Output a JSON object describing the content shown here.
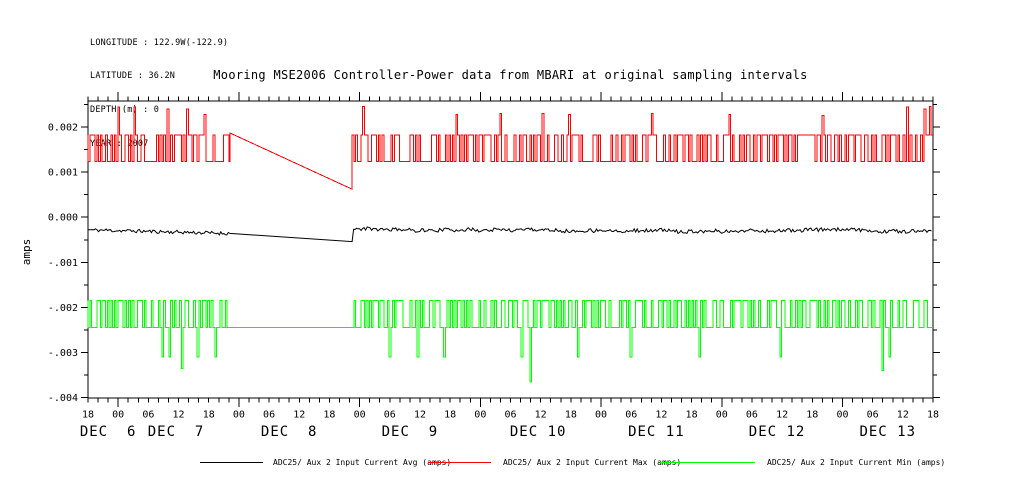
{
  "header": {
    "lines": [
      "LONGITUDE : 122.9W(-122.9)",
      "LATITUDE : 36.2N",
      "DEPTH (m) : 0",
      "YEAR : 2007"
    ]
  },
  "chart_data": {
    "type": "line",
    "title": "Mooring MSE2006 Controller-Power data from MBARI at original sampling intervals",
    "ylabel": "amps",
    "ylim": [
      -0.00405,
      0.00258
    ],
    "yticks": [
      0.002,
      0.001,
      0.0,
      -0.001,
      -0.002,
      -0.003,
      -0.004
    ],
    "ytick_labels": [
      "0.002",
      "0.001",
      "0.000",
      "-.001",
      "-.002",
      "-.003",
      "-.004"
    ],
    "y_minor_ticks": [
      0.0025,
      0.0015,
      0.0005,
      -0.0005,
      -0.0015,
      -0.0025,
      -0.0035
    ],
    "grid": "off",
    "x_axis": {
      "start": "DEC 6 18:00 2007",
      "end": "DEC 13 18:00 2007",
      "total_hours": 168,
      "major_tick_hours": 6,
      "minor_tick_hours": 2,
      "hour_labels": [
        "18",
        "00",
        "06",
        "12",
        "18",
        "00",
        "06",
        "12",
        "18",
        "00",
        "06",
        "12",
        "18",
        "00",
        "06",
        "12",
        "18",
        "00",
        "06",
        "12",
        "18",
        "00",
        "06",
        "12",
        "18",
        "00",
        "06",
        "12",
        "18"
      ],
      "day_labels": [
        {
          "text": "DEC  6",
          "hour": 4
        },
        {
          "text": "DEC  7",
          "hour": 17.5
        },
        {
          "text": "DEC  8",
          "hour": 40
        },
        {
          "text": "DEC  9",
          "hour": 64
        },
        {
          "text": "DEC 10",
          "hour": 89.5
        },
        {
          "text": "DEC 11",
          "hour": 113
        },
        {
          "text": "DEC 12",
          "hour": 137
        },
        {
          "text": "DEC 13",
          "hour": 159
        }
      ]
    },
    "data_gap_hours": {
      "start": 28.2,
      "end": 52.5
    },
    "series": [
      {
        "name": "ADC25/ Aux 2 Input Current Avg (amps)",
        "color": "#000000",
        "style": "noisy-line",
        "base": -0.00029,
        "noise": 4e-05,
        "gap_segment": {
          "start_hour": 28.2,
          "start_value": -0.00036,
          "end_hour": 52.5,
          "end_value": -0.00054,
          "resume_value": -0.00027
        }
      },
      {
        "name": "ADC25/ Aux 2 Input Current Max (amps)",
        "color": "#ff0000",
        "style": "square-wave",
        "level_high": 0.00182,
        "level_low": 0.00123,
        "gap_segment": {
          "start_hour": 28.2,
          "start_value": 0.00187,
          "end_hour": 52.5,
          "end_value": 0.00062
        },
        "spikes": [
          {
            "h": 6.0,
            "v": 0.00244
          },
          {
            "h": 9.1,
            "v": 0.00244
          },
          {
            "h": 15.9,
            "v": 0.0024
          },
          {
            "h": 19.7,
            "v": 0.0024
          },
          {
            "h": 23.3,
            "v": 0.00228
          },
          {
            "h": 54.7,
            "v": 0.00246
          },
          {
            "h": 73.2,
            "v": 0.00228
          },
          {
            "h": 81.9,
            "v": 0.0023
          },
          {
            "h": 90.5,
            "v": 0.0023
          },
          {
            "h": 95.8,
            "v": 0.00228
          },
          {
            "h": 112.3,
            "v": 0.0023
          },
          {
            "h": 127.6,
            "v": 0.00228
          },
          {
            "h": 146.1,
            "v": 0.00226
          },
          {
            "h": 163.0,
            "v": 0.00244
          },
          {
            "h": 166.4,
            "v": 0.0024
          },
          {
            "h": 167.5,
            "v": 0.00246
          }
        ]
      },
      {
        "name": "ADC25/ Aux 2 Input Current Min (amps)",
        "color": "#00ff00",
        "style": "square-wave",
        "level_high": -0.00185,
        "level_low": -0.00245,
        "gap_segment": {
          "start_hour": 27.8,
          "flat_value": -0.00245,
          "end_hour": 52.5
        },
        "spikes": [
          {
            "h": 14.9,
            "v": -0.0031
          },
          {
            "h": 16.3,
            "v": -0.0031
          },
          {
            "h": 18.7,
            "v": -0.00335
          },
          {
            "h": 21.9,
            "v": -0.0031
          },
          {
            "h": 25.4,
            "v": -0.0031
          },
          {
            "h": 60.0,
            "v": -0.0031
          },
          {
            "h": 65.6,
            "v": -0.0031
          },
          {
            "h": 71.0,
            "v": -0.0031
          },
          {
            "h": 86.3,
            "v": -0.0031
          },
          {
            "h": 87.9,
            "v": -0.00365
          },
          {
            "h": 97.4,
            "v": -0.0031
          },
          {
            "h": 107.8,
            "v": -0.0031
          },
          {
            "h": 121.7,
            "v": -0.0031
          },
          {
            "h": 137.6,
            "v": -0.0031
          },
          {
            "h": 158.0,
            "v": -0.0034
          },
          {
            "h": 159.4,
            "v": -0.0031
          }
        ]
      }
    ]
  }
}
